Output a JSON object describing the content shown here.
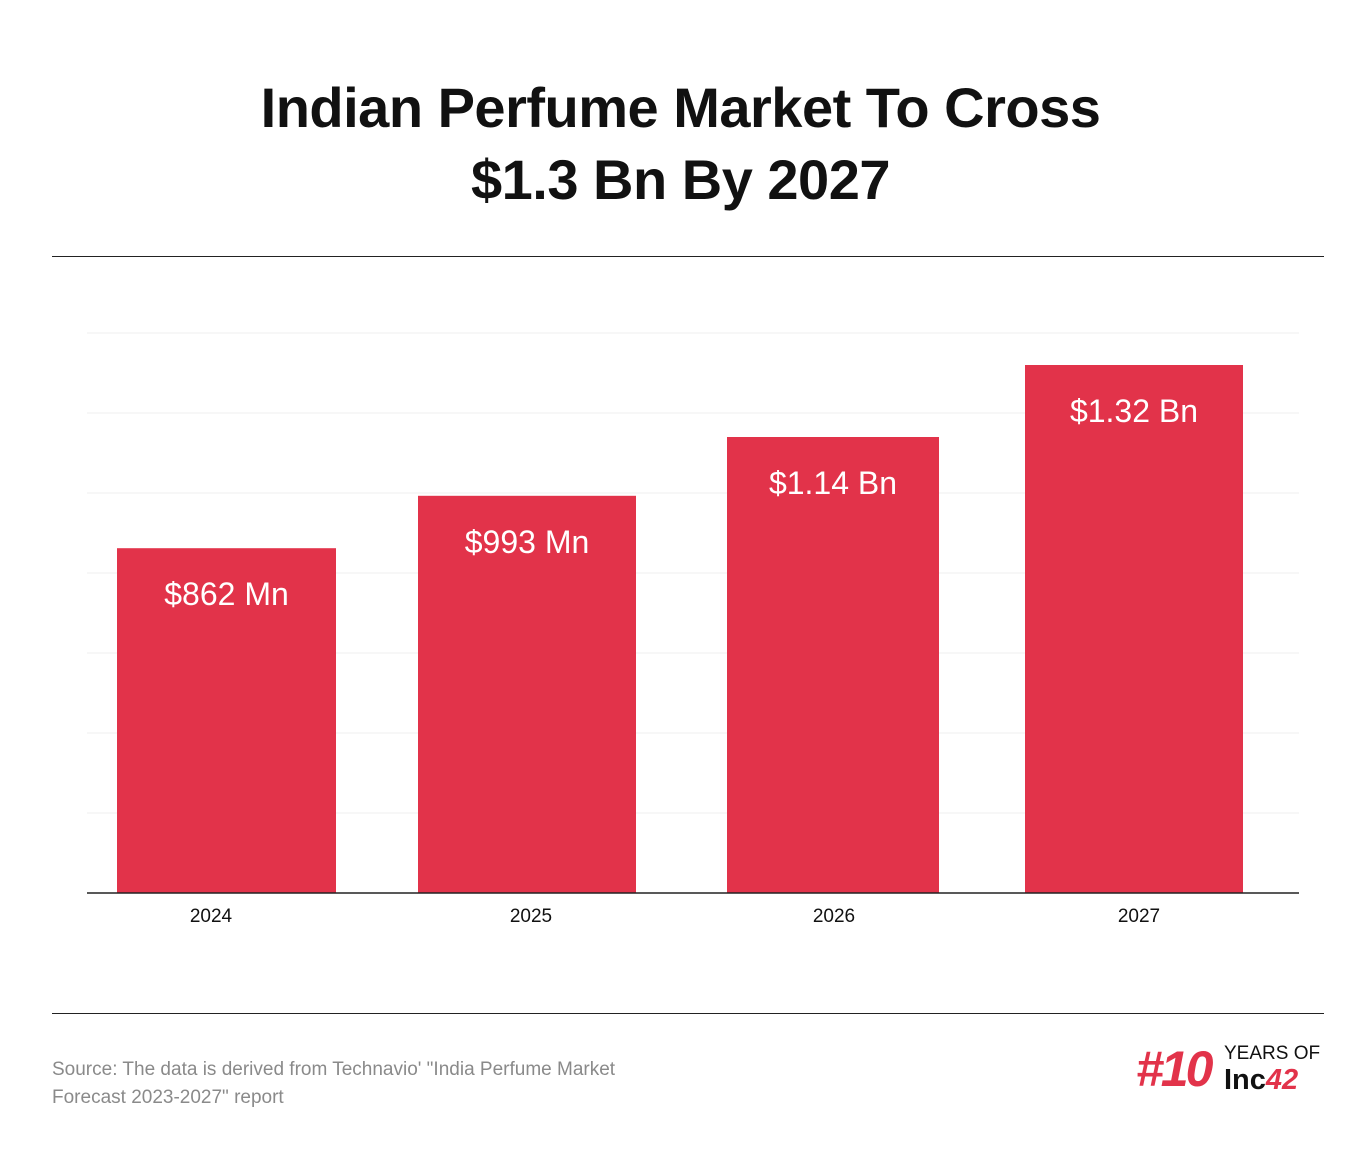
{
  "header": {
    "title_line1": "Indian Perfume Market To Cross",
    "title_line2": "$1.3 Bn By 2027"
  },
  "chart_data": {
    "type": "bar",
    "categories": [
      "2024",
      "2025",
      "2026",
      "2027"
    ],
    "values": [
      862,
      993,
      1140,
      1320
    ],
    "value_units": "USD millions",
    "data_labels": [
      "$862 Mn",
      "$993 Mn",
      "$1.14 Bn",
      "$1.32 Bn"
    ],
    "title": "Indian Perfume Market To Cross $1.3 Bn By 2027",
    "xlabel": "",
    "ylabel": "",
    "ylim": [
      0,
      1400
    ],
    "grid": true,
    "legend": "none",
    "bar_color": "#e2334a"
  },
  "footer": {
    "source_line1": "Source: The data is derived from Technavio' \"India Perfume Market",
    "source_line2": "Forecast 2023-2027\" report"
  },
  "brand": {
    "hash": "#10",
    "years": "YEARS OF",
    "inc": "Inc",
    "inc_num": "42"
  },
  "colors": {
    "accent": "#e2334a",
    "text": "#111111",
    "source_text": "#8a8a8a",
    "grid": "#efefef"
  }
}
